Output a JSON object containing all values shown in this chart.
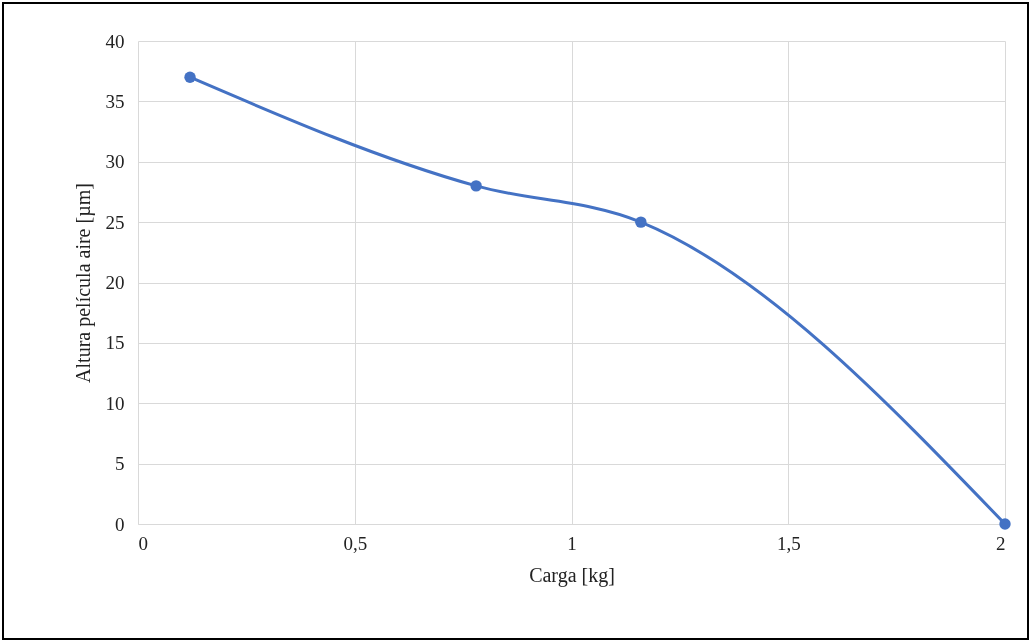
{
  "chart_data": {
    "type": "line",
    "xlabel": "Carga [kg]",
    "ylabel": "Altura película aire [µm]",
    "x": [
      0.12,
      0.78,
      1.16,
      2
    ],
    "series": [
      {
        "color": "#4472c4",
        "values": [
          37,
          28,
          25,
          0
        ]
      }
    ],
    "xlim": [
      0,
      2
    ],
    "xticks": [
      0,
      {
        "value": 0.5,
        "label": "0,5"
      },
      1,
      {
        "value": 1.5,
        "label": "1,5"
      },
      2
    ],
    "ylim": [
      0,
      40
    ],
    "yticks": [
      0,
      5,
      10,
      15,
      20,
      25,
      30,
      35,
      40
    ],
    "grid": true,
    "marker": "circle",
    "line_style": "solid"
  }
}
